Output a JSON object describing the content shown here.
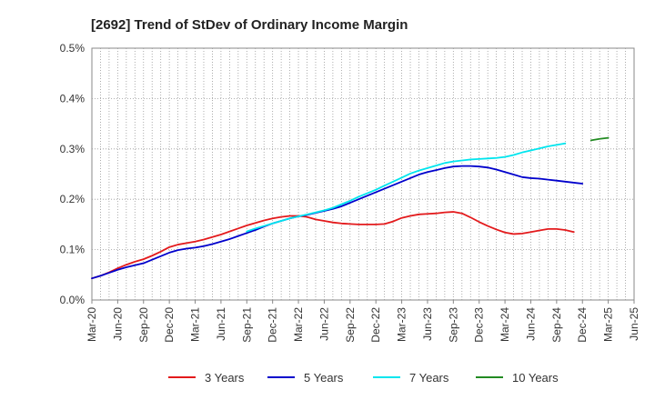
{
  "chart_data": {
    "type": "line",
    "title": "[2692]  Trend of StDev of Ordinary Income Margin",
    "xlabel": "",
    "ylabel": "",
    "ylim": [
      0,
      0.5
    ],
    "y_ticks": [
      0,
      0.1,
      0.2,
      0.3,
      0.4,
      0.5
    ],
    "y_tick_labels": [
      "0.0%",
      "0.1%",
      "0.2%",
      "0.3%",
      "0.4%",
      "0.5%"
    ],
    "x_tick_labels": [
      "Mar-20",
      "Jun-20",
      "Sep-20",
      "Dec-20",
      "Mar-21",
      "Jun-21",
      "Sep-21",
      "Dec-21",
      "Mar-22",
      "Jun-22",
      "Sep-22",
      "Dec-22",
      "Mar-23",
      "Jun-23",
      "Sep-23",
      "Dec-23",
      "Mar-24",
      "Jun-24",
      "Sep-24",
      "Dec-24",
      "Mar-25",
      "Jun-25"
    ],
    "x_start": "2020-03",
    "grid": true,
    "legend_position": "bottom",
    "series": [
      {
        "name": "3 Years",
        "color": "#e31a1c",
        "start": "2020-03",
        "values": [
          0.043,
          0.048,
          0.055,
          0.063,
          0.07,
          0.076,
          0.081,
          0.088,
          0.096,
          0.105,
          0.11,
          0.113,
          0.116,
          0.12,
          0.125,
          0.13,
          0.136,
          0.142,
          0.148,
          0.153,
          0.158,
          0.162,
          0.165,
          0.167,
          0.167,
          0.165,
          0.16,
          0.157,
          0.154,
          0.152,
          0.151,
          0.15,
          0.15,
          0.15,
          0.151,
          0.156,
          0.163,
          0.167,
          0.17,
          0.171,
          0.172,
          0.174,
          0.175,
          0.172,
          0.164,
          0.155,
          0.147,
          0.14,
          0.134,
          0.131,
          0.132,
          0.135,
          0.138,
          0.141,
          0.141,
          0.139,
          0.135
        ]
      },
      {
        "name": "5 Years",
        "color": "#0000cc",
        "start": "2020-03",
        "values": [
          0.043,
          0.048,
          0.054,
          0.06,
          0.065,
          0.069,
          0.073,
          0.08,
          0.087,
          0.094,
          0.099,
          0.102,
          0.104,
          0.107,
          0.111,
          0.116,
          0.121,
          0.127,
          0.133,
          0.139,
          0.146,
          0.152,
          0.157,
          0.162,
          0.166,
          0.169,
          0.173,
          0.177,
          0.181,
          0.186,
          0.193,
          0.2,
          0.207,
          0.214,
          0.221,
          0.228,
          0.235,
          0.242,
          0.249,
          0.254,
          0.258,
          0.262,
          0.265,
          0.266,
          0.266,
          0.265,
          0.263,
          0.259,
          0.254,
          0.249,
          0.244,
          0.242,
          0.241,
          0.239,
          0.237,
          0.235,
          0.233,
          0.231
        ]
      },
      {
        "name": "7 Years",
        "color": "#00e5ee",
        "start": "2021-09",
        "values": [
          0.136,
          0.142,
          0.147,
          0.152,
          0.157,
          0.162,
          0.166,
          0.17,
          0.174,
          0.178,
          0.183,
          0.19,
          0.197,
          0.205,
          0.212,
          0.219,
          0.227,
          0.235,
          0.243,
          0.251,
          0.257,
          0.262,
          0.267,
          0.272,
          0.275,
          0.277,
          0.279,
          0.28,
          0.281,
          0.282,
          0.284,
          0.288,
          0.293,
          0.297,
          0.301,
          0.305,
          0.308,
          0.311
        ]
      },
      {
        "name": "10 Years",
        "color": "#228b22",
        "start": "2025-01",
        "values": [
          0.317,
          0.32,
          0.322
        ]
      }
    ]
  }
}
